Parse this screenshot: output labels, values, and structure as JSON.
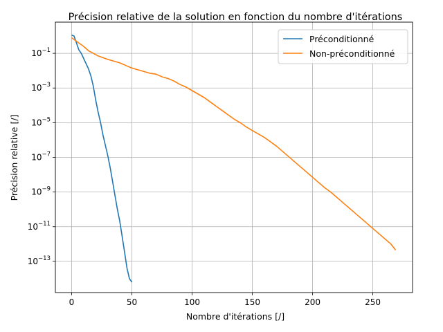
{
  "chart_data": {
    "type": "line",
    "title": "Précision relative de la solution en fonction du nombre d'itérations",
    "xlabel": "Nombre d'itérations [/]",
    "ylabel": "Précision relative [/]",
    "xlim": [
      -13.5,
      283
    ],
    "ylim_log10": [
      -14.8,
      0.8
    ],
    "y_scale": "log",
    "grid": true,
    "legend_position": "top-right",
    "x_ticks": [
      0,
      50,
      100,
      150,
      200,
      250
    ],
    "y_ticks": [
      {
        "base": "10",
        "exp": "−1",
        "log": -1
      },
      {
        "base": "10",
        "exp": "−3",
        "log": -3
      },
      {
        "base": "10",
        "exp": "−5",
        "log": -5
      },
      {
        "base": "10",
        "exp": "−7",
        "log": -7
      },
      {
        "base": "10",
        "exp": "−9",
        "log": -9
      },
      {
        "base": "10",
        "exp": "−11",
        "log": -11
      },
      {
        "base": "10",
        "exp": "−13",
        "log": -13
      }
    ],
    "series": [
      {
        "name": "Préconditionné",
        "color": "#1f77b4",
        "x": [
          0,
          2,
          3,
          4,
          5,
          6,
          8,
          10,
          12,
          14,
          16,
          18,
          20,
          22,
          24,
          26,
          28,
          30,
          32,
          34,
          36,
          38,
          40,
          42,
          44,
          46,
          48,
          50
        ],
        "log10_y": [
          0.05,
          0.0,
          -0.2,
          -0.4,
          -0.6,
          -0.8,
          -1.0,
          -1.3,
          -1.6,
          -1.9,
          -2.3,
          -2.9,
          -3.7,
          -4.4,
          -5.0,
          -5.7,
          -6.3,
          -6.9,
          -7.6,
          -8.4,
          -9.2,
          -10.0,
          -10.7,
          -11.6,
          -12.5,
          -13.4,
          -14.0,
          -14.2
        ]
      },
      {
        "name": "Non-préconditionné",
        "color": "#ff7f0e",
        "x": [
          0,
          3,
          6,
          10,
          14,
          18,
          22,
          26,
          30,
          35,
          40,
          45,
          50,
          55,
          60,
          65,
          70,
          75,
          80,
          85,
          90,
          95,
          100,
          105,
          110,
          115,
          120,
          125,
          130,
          135,
          140,
          145,
          150,
          155,
          160,
          165,
          170,
          175,
          180,
          185,
          190,
          195,
          200,
          205,
          210,
          215,
          220,
          225,
          230,
          235,
          240,
          245,
          250,
          255,
          260,
          265,
          269
        ],
        "log10_y": [
          -0.1,
          -0.25,
          -0.4,
          -0.6,
          -0.85,
          -1.0,
          -1.15,
          -1.25,
          -1.35,
          -1.45,
          -1.55,
          -1.7,
          -1.85,
          -1.95,
          -2.05,
          -2.15,
          -2.2,
          -2.35,
          -2.45,
          -2.6,
          -2.8,
          -2.95,
          -3.15,
          -3.35,
          -3.55,
          -3.8,
          -4.05,
          -4.3,
          -4.55,
          -4.8,
          -5.0,
          -5.25,
          -5.45,
          -5.65,
          -5.85,
          -6.1,
          -6.35,
          -6.65,
          -6.95,
          -7.25,
          -7.55,
          -7.85,
          -8.15,
          -8.45,
          -8.75,
          -9.0,
          -9.3,
          -9.6,
          -9.9,
          -10.2,
          -10.5,
          -10.8,
          -11.1,
          -11.4,
          -11.7,
          -12.0,
          -12.35
        ]
      }
    ]
  }
}
